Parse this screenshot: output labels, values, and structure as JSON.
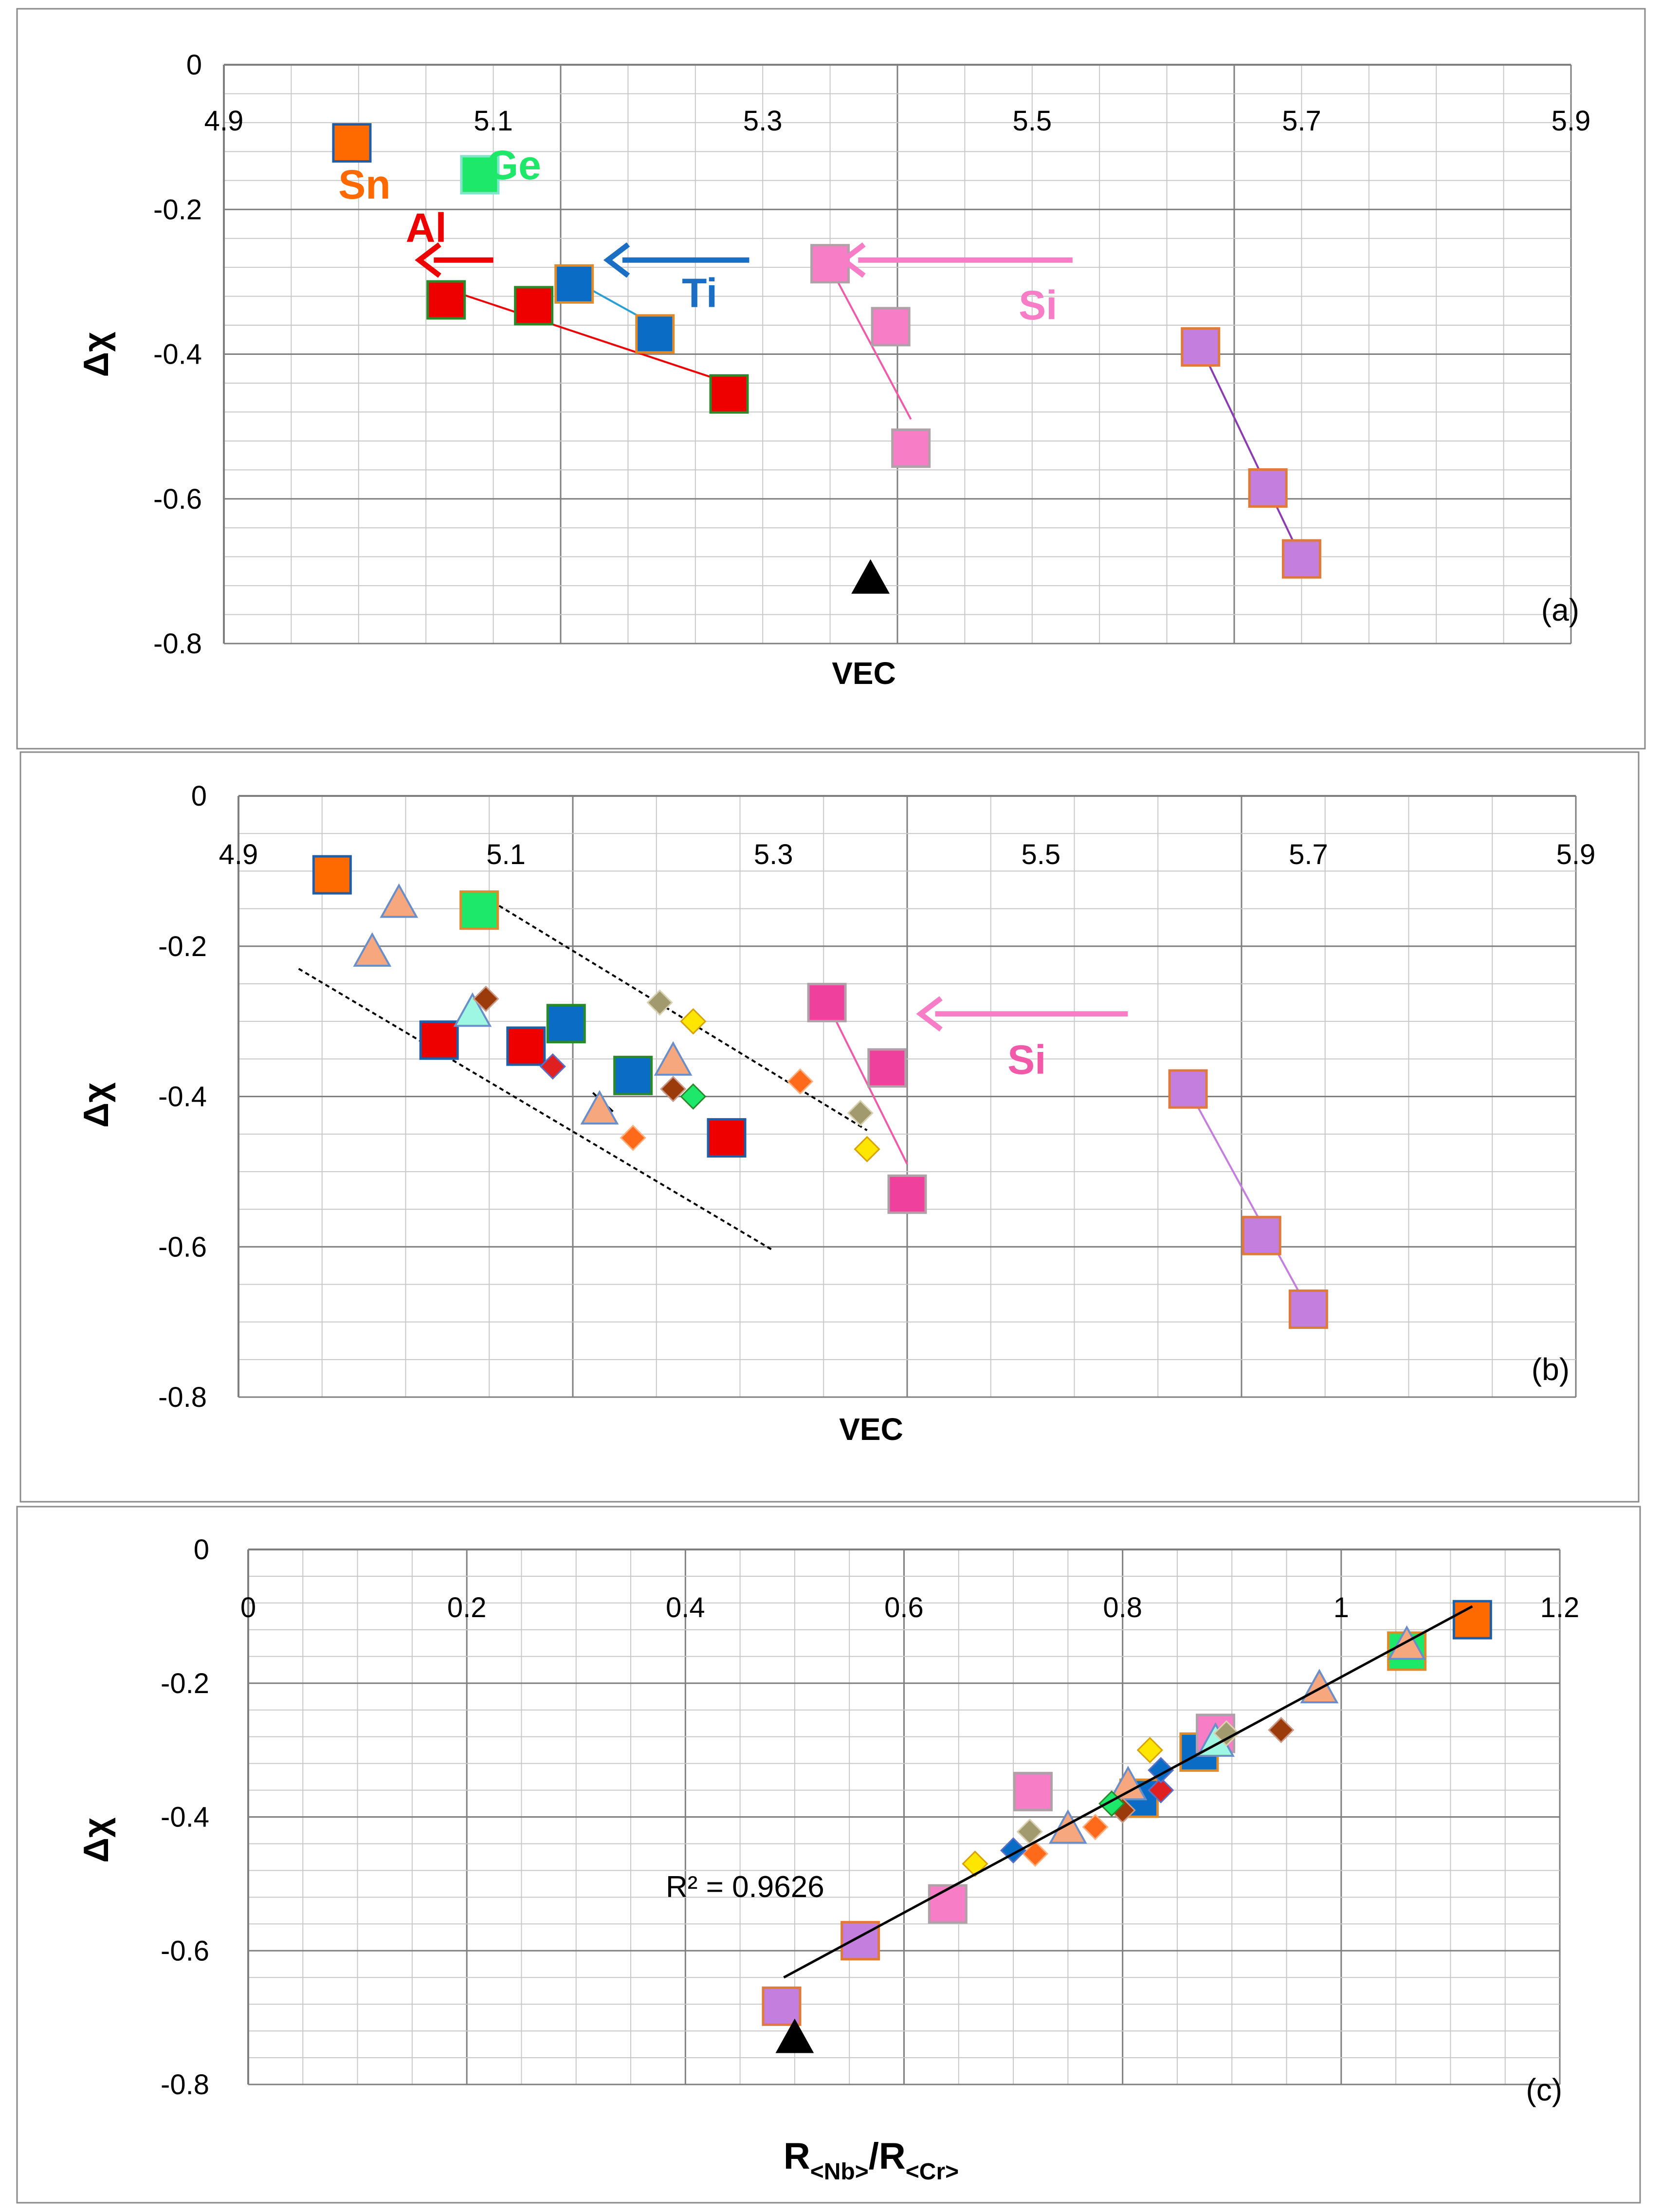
{
  "chart_data": [
    {
      "id": "a",
      "type": "scatter",
      "panel_label": "(a)",
      "xlabel": "VEC",
      "ylabel": "Δχ",
      "xlim": [
        4.9,
        5.9
      ],
      "ylim": [
        -0.8,
        0
      ],
      "xticks": [
        4.9,
        5.1,
        5.3,
        5.5,
        5.7,
        5.9
      ],
      "yticks": [
        0,
        -0.2,
        -0.4,
        -0.6,
        -0.8
      ],
      "xtick_labels": [
        "4.9",
        "5.1",
        "5.3",
        "5.5",
        "5.7",
        "5.9"
      ],
      "ytick_labels": [
        "0",
        "-0.2",
        "-0.4",
        "-0.6",
        "-0.8"
      ],
      "series": [
        {
          "name": "Sn",
          "color": "#ff6a00",
          "edge": "#1f5fa8",
          "marker": "square",
          "points": [
            [
              4.995,
              -0.108
            ]
          ]
        },
        {
          "name": "Ge",
          "color": "#1ee86a",
          "edge": "#7fe6c9",
          "marker": "square",
          "points": [
            [
              5.09,
              -0.152
            ]
          ]
        },
        {
          "name": "Al",
          "color": "#ee0000",
          "edge": "#2a8a2a",
          "marker": "square",
          "points": [
            [
              5.065,
              -0.325
            ],
            [
              5.13,
              -0.333
            ],
            [
              5.275,
              -0.455
            ]
          ]
        },
        {
          "name": "Ti",
          "color": "#0a6cc4",
          "edge": "#e08a2a",
          "marker": "square",
          "points": [
            [
              5.16,
              -0.303
            ],
            [
              5.22,
              -0.372
            ]
          ]
        },
        {
          "name": "Si",
          "color": "#f77ec6",
          "edge": "#b0a0a8",
          "marker": "square",
          "points": [
            [
              5.35,
              -0.275
            ],
            [
              5.395,
              -0.362
            ],
            [
              5.41,
              -0.53
            ]
          ]
        },
        {
          "name": "Purple",
          "color": "#c47ede",
          "edge": "#e07a3a",
          "marker": "square",
          "points": [
            [
              5.625,
              -0.39
            ],
            [
              5.675,
              -0.585
            ],
            [
              5.7,
              -0.683
            ]
          ]
        },
        {
          "name": "Reference",
          "color": "#000000",
          "edge": "#000000",
          "marker": "triangle",
          "points": [
            [
              5.38,
              -0.708
            ]
          ]
        }
      ],
      "trend_lines": [
        {
          "color": "#ee0000",
          "from": [
            5.065,
            -0.31
          ],
          "to": [
            5.275,
            -0.44
          ]
        },
        {
          "color": "#2a9fd6",
          "from": [
            5.16,
            -0.298
          ],
          "to": [
            5.22,
            -0.36
          ]
        },
        {
          "color": "#f05aa8",
          "from": [
            5.35,
            -0.28
          ],
          "to": [
            5.41,
            -0.49
          ]
        },
        {
          "color": "#8a3cb0",
          "from": [
            5.625,
            -0.39
          ],
          "to": [
            5.7,
            -0.683
          ]
        }
      ],
      "arrows": [
        {
          "color": "#ee0000",
          "from": [
            5.1,
            -0.27
          ],
          "to": [
            5.045,
            -0.27
          ]
        },
        {
          "color": "#1a6fc4",
          "from": [
            5.29,
            -0.27
          ],
          "to": [
            5.185,
            -0.27
          ]
        },
        {
          "color": "#f77ec6",
          "from": [
            5.53,
            -0.27
          ],
          "to": [
            5.36,
            -0.27
          ]
        }
      ],
      "annotations": [
        {
          "text": "Sn",
          "color": "#ff6a00",
          "at": [
            4.985,
            -0.185
          ]
        },
        {
          "text": "Ge",
          "color": "#1ee86a",
          "at": [
            5.095,
            -0.158
          ]
        },
        {
          "text": "Al",
          "color": "#ee0000",
          "at": [
            5.035,
            -0.245
          ]
        },
        {
          "text": "Ti",
          "color": "#1a6fc4",
          "at": [
            5.24,
            -0.335
          ]
        },
        {
          "text": "Si",
          "color": "#f77ec6",
          "at": [
            5.49,
            -0.352
          ]
        }
      ]
    },
    {
      "id": "b",
      "type": "scatter",
      "panel_label": "(b)",
      "xlabel": "VEC",
      "ylabel": "Δχ",
      "xlim": [
        4.9,
        5.9
      ],
      "ylim": [
        -0.8,
        0
      ],
      "xticks": [
        4.9,
        5.1,
        5.3,
        5.5,
        5.7,
        5.9
      ],
      "yticks": [
        0,
        -0.2,
        -0.4,
        -0.6,
        -0.8
      ],
      "xtick_labels": [
        "4.9",
        "5.1",
        "5.3",
        "5.5",
        "5.7",
        "5.9"
      ],
      "ytick_labels": [
        "0",
        "-0.2",
        "-0.4",
        "-0.6",
        "-0.8"
      ],
      "series": [
        {
          "name": "Sn",
          "color": "#ff6a00",
          "edge": "#1f5fa8",
          "marker": "square",
          "points": [
            [
              4.97,
              -0.105
            ]
          ]
        },
        {
          "name": "Ge",
          "color": "#1ee86a",
          "edge": "#e08a2a",
          "marker": "square",
          "points": [
            [
              5.08,
              -0.152
            ]
          ]
        },
        {
          "name": "Al",
          "color": "#ee0000",
          "edge": "#1f5fa8",
          "marker": "square",
          "points": [
            [
              5.05,
              -0.325
            ],
            [
              5.115,
              -0.333
            ],
            [
              5.265,
              -0.455
            ]
          ]
        },
        {
          "name": "Ti",
          "color": "#0a6cc4",
          "edge": "#2a8a2a",
          "marker": "square",
          "points": [
            [
              5.145,
              -0.303
            ],
            [
              5.195,
              -0.372
            ]
          ]
        },
        {
          "name": "Si",
          "color": "#f0409e",
          "edge": "#b0a0a8",
          "marker": "square",
          "points": [
            [
              5.34,
              -0.275
            ],
            [
              5.385,
              -0.362
            ],
            [
              5.4,
              -0.53
            ]
          ]
        },
        {
          "name": "Purple",
          "color": "#c47ede",
          "edge": "#e07a3a",
          "marker": "square",
          "points": [
            [
              5.61,
              -0.39
            ],
            [
              5.665,
              -0.585
            ],
            [
              5.7,
              -0.683
            ]
          ]
        },
        {
          "name": "Peach triangles",
          "color": "#f7a77e",
          "edge": "#6a8ec8",
          "marker": "triangle",
          "points": [
            [
              5.02,
              -0.14
            ],
            [
              5.0,
              -0.205
            ],
            [
              5.225,
              -0.35
            ],
            [
              5.17,
              -0.415
            ]
          ]
        },
        {
          "name": "Cyan triangles",
          "color": "#9ef7e2",
          "edge": "#6a8ec8",
          "marker": "triangle",
          "points": [
            [
              5.075,
              -0.285
            ]
          ]
        },
        {
          "name": "Brown diamonds",
          "color": "#9b3a0a",
          "edge": "#c89a8a",
          "marker": "diamond",
          "points": [
            [
              5.085,
              -0.27
            ],
            [
              5.225,
              -0.39
            ]
          ]
        },
        {
          "name": "Khaki diamonds",
          "color": "#a09a6e",
          "edge": "#d8d0b0",
          "marker": "diamond",
          "points": [
            [
              5.215,
              -0.275
            ],
            [
              5.365,
              -0.422
            ]
          ]
        },
        {
          "name": "Yellow diamonds",
          "color": "#ffe600",
          "edge": "#d8a000",
          "marker": "diamond",
          "points": [
            [
              5.24,
              -0.3
            ],
            [
              5.37,
              -0.47
            ]
          ]
        },
        {
          "name": "Orange diamonds",
          "color": "#ff6a1a",
          "edge": "#ffb080",
          "marker": "diamond",
          "points": [
            [
              5.32,
              -0.38
            ],
            [
              5.195,
              -0.455
            ]
          ]
        },
        {
          "name": "Red diamonds",
          "color": "#e02020",
          "edge": "#5a70c8",
          "marker": "diamond",
          "points": [
            [
              5.135,
              -0.36
            ]
          ]
        },
        {
          "name": "Green diamonds",
          "color": "#1ee86a",
          "edge": "#2a8a2a",
          "marker": "diamond",
          "points": [
            [
              5.24,
              -0.4
            ]
          ]
        }
      ],
      "trend_lines": [
        {
          "color": "#f05aa8",
          "from": [
            5.34,
            -0.275
          ],
          "to": [
            5.4,
            -0.49
          ]
        },
        {
          "color": "#c47ede",
          "from": [
            5.61,
            -0.39
          ],
          "to": [
            5.7,
            -0.683
          ]
        },
        {
          "color": "#000000",
          "from": [
            5.165,
            -0.395
          ],
          "to": [
            5.18,
            -0.42
          ]
        }
      ],
      "dashed_lines": [
        {
          "color": "#000000",
          "from": [
            5.08,
            -0.13
          ],
          "to": [
            5.37,
            -0.445
          ]
        },
        {
          "color": "#000000",
          "from": [
            4.945,
            -0.23
          ],
          "to": [
            5.3,
            -0.605
          ]
        }
      ],
      "arrows": [
        {
          "color": "#f77ec6",
          "from": [
            5.565,
            -0.29
          ],
          "to": [
            5.41,
            -0.29
          ]
        }
      ],
      "annotations": [
        {
          "text": "Si",
          "color": "#f05aa8",
          "at": [
            5.475,
            -0.37
          ]
        }
      ]
    },
    {
      "id": "c",
      "type": "scatter",
      "panel_label": "(c)",
      "xlabel_main": "R",
      "xlabel_sub1": "<Nb>",
      "xlabel_slash": "/R",
      "xlabel_sub2": "<Cr>",
      "ylabel": "Δχ",
      "xlim": [
        0,
        1.2
      ],
      "ylim": [
        -0.8,
        0
      ],
      "xticks": [
        0,
        0.2,
        0.4,
        0.6,
        0.8,
        1,
        1.2
      ],
      "yticks": [
        0,
        -0.2,
        -0.4,
        -0.6,
        -0.8
      ],
      "xtick_labels": [
        "0",
        "0.2",
        "0.4",
        "0.6",
        "0.8",
        "1",
        "1.2"
      ],
      "ytick_labels": [
        "0",
        "-0.2",
        "-0.4",
        "-0.6",
        "-0.8"
      ],
      "r_squared_label": "R² = 0.9626",
      "fit_line": {
        "color": "#000000",
        "from": [
          0.49,
          -0.64
        ],
        "to": [
          1.12,
          -0.085
        ]
      },
      "series": [
        {
          "name": "Sn",
          "color": "#ff6a00",
          "edge": "#1f5fa8",
          "marker": "square",
          "points": [
            [
              1.12,
              -0.105
            ]
          ]
        },
        {
          "name": "Ge",
          "color": "#1ee86a",
          "edge": "#e08a2a",
          "marker": "square",
          "points": [
            [
              1.06,
              -0.152
            ]
          ]
        },
        {
          "name": "Ti",
          "color": "#0a6cc4",
          "edge": "#e08a2a",
          "marker": "square",
          "points": [
            [
              0.87,
              -0.303
            ],
            [
              0.815,
              -0.372
            ]
          ]
        },
        {
          "name": "Pink",
          "color": "#f77ec6",
          "edge": "#b0a0a8",
          "marker": "square",
          "points": [
            [
              0.885,
              -0.275
            ],
            [
              0.718,
              -0.362
            ],
            [
              0.64,
              -0.53
            ]
          ]
        },
        {
          "name": "Purple",
          "color": "#c47ede",
          "edge": "#e07a3a",
          "marker": "square",
          "points": [
            [
              0.56,
              -0.585
            ],
            [
              0.488,
              -0.683
            ]
          ]
        },
        {
          "name": "Peach triangles",
          "color": "#f7a77e",
          "edge": "#6a8ec8",
          "marker": "triangle",
          "points": [
            [
              1.06,
              -0.14
            ],
            [
              0.98,
              -0.205
            ],
            [
              0.805,
              -0.35
            ],
            [
              0.75,
              -0.415
            ]
          ]
        },
        {
          "name": "Cyan triangles",
          "color": "#9ef7e2",
          "edge": "#6a8ec8",
          "marker": "triangle",
          "points": [
            [
              0.885,
              -0.285
            ]
          ]
        },
        {
          "name": "Brown diamonds",
          "color": "#9b3a0a",
          "edge": "#c89a8a",
          "marker": "diamond",
          "points": [
            [
              0.945,
              -0.27
            ],
            [
              0.8,
              -0.39
            ]
          ]
        },
        {
          "name": "Khaki diamonds",
          "color": "#a09a6e",
          "edge": "#d8d0b0",
          "marker": "diamond",
          "points": [
            [
              0.895,
              -0.275
            ],
            [
              0.715,
              -0.422
            ]
          ]
        },
        {
          "name": "Yellow diamonds",
          "color": "#ffe600",
          "edge": "#d8a000",
          "marker": "diamond",
          "points": [
            [
              0.825,
              -0.3
            ],
            [
              0.665,
              -0.47
            ]
          ]
        },
        {
          "name": "Orange diamonds",
          "color": "#ff6a1a",
          "edge": "#ffb080",
          "marker": "diamond",
          "points": [
            [
              0.72,
              -0.455
            ],
            [
              0.775,
              -0.415
            ]
          ]
        },
        {
          "name": "Red diamonds",
          "color": "#e02020",
          "edge": "#5a70c8",
          "marker": "diamond",
          "points": [
            [
              0.835,
              -0.36
            ]
          ]
        },
        {
          "name": "Green diamonds",
          "color": "#1ee86a",
          "edge": "#2a8a2a",
          "marker": "diamond",
          "points": [
            [
              0.79,
              -0.38
            ]
          ]
        },
        {
          "name": "Blue diamonds",
          "color": "#0a6cc4",
          "edge": "#5a70c8",
          "marker": "diamond",
          "points": [
            [
              0.7,
              -0.45
            ],
            [
              0.835,
              -0.33
            ]
          ]
        },
        {
          "name": "Reference",
          "color": "#000000",
          "edge": "#000000",
          "marker": "triangle",
          "points": [
            [
              0.5,
              -0.728
            ]
          ]
        }
      ]
    }
  ]
}
